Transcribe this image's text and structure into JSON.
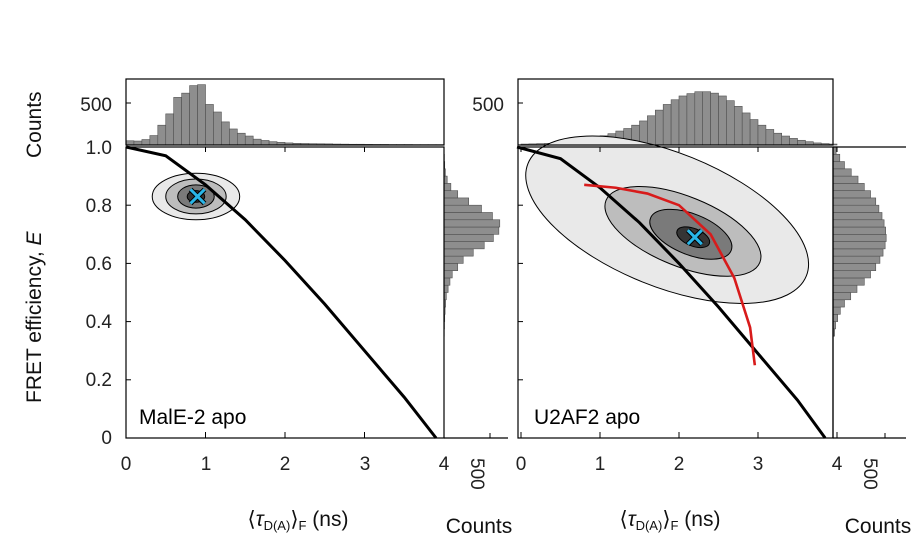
{
  "figure": {
    "y_axis_label": "FRET efficiency, E",
    "y_axis_label_prefix": "FRET efficiency, ",
    "y_axis_label_var": "E",
    "hist_y_label": "Counts",
    "x_axis_label": "⟨τD(A)⟩F (ns)",
    "x_axis_label_open": "⟨",
    "x_axis_label_tau": "τ",
    "x_axis_label_sub": "D(A)",
    "x_axis_label_close": "⟩",
    "x_axis_label_sub2": "F",
    "x_axis_label_units": " (ns)",
    "side_hist_label": "Counts",
    "hist_tick": "500",
    "side_hist_tick": "500"
  },
  "chart_data": [
    {
      "type": "heatmap",
      "panel": "MalE-2 apo",
      "title": "MalE-2 apo",
      "xlabel": "⟨τD(A)⟩F (ns)",
      "ylabel": "FRET efficiency, E",
      "xlim": [
        0,
        4
      ],
      "ylim": [
        0,
        1
      ],
      "x_ticks": [
        "0",
        "1",
        "2",
        "3",
        "4"
      ],
      "y_ticks": [
        "0",
        "0.2",
        "0.4",
        "0.6",
        "0.8",
        "1.0"
      ],
      "population_center": {
        "tau_ns": 0.9,
        "E": 0.83
      },
      "contour_levels": [
        {
          "cx": 0.88,
          "cy": 0.83,
          "rx": 0.55,
          "ry": 0.08
        },
        {
          "cx": 0.88,
          "cy": 0.83,
          "rx": 0.38,
          "ry": 0.06
        },
        {
          "cx": 0.88,
          "cy": 0.83,
          "rx": 0.23,
          "ry": 0.04
        },
        {
          "cx": 0.88,
          "cy": 0.83,
          "rx": 0.11,
          "ry": 0.02
        }
      ],
      "static_fret_line": [
        [
          0,
          1.0
        ],
        [
          0.5,
          0.97
        ],
        [
          1.0,
          0.87
        ],
        [
          1.5,
          0.75
        ],
        [
          2.0,
          0.61
        ],
        [
          2.5,
          0.46
        ],
        [
          3.0,
          0.3
        ],
        [
          3.5,
          0.14
        ],
        [
          3.9,
          0.0
        ]
      ],
      "tau_histogram": {
        "bin_start": 0,
        "bin_width": 0.1,
        "ylim": [
          0,
          700
        ],
        "counts": [
          45,
          42,
          58,
          100,
          210,
          330,
          505,
          550,
          630,
          640,
          430,
          350,
          245,
          170,
          125,
          95,
          62,
          48,
          35,
          28,
          22,
          18,
          16,
          14,
          13,
          12,
          10,
          9,
          8,
          8,
          7,
          6,
          6,
          5,
          5,
          5,
          4,
          4,
          4,
          4
        ]
      },
      "E_histogram": {
        "bin_start": 0.35,
        "bin_width": 0.025,
        "xlim": [
          0,
          700
        ],
        "counts": [
          3,
          5,
          8,
          12,
          18,
          25,
          45,
          65,
          90,
          150,
          210,
          320,
          440,
          540,
          600,
          610,
          530,
          410,
          270,
          150,
          75,
          35,
          15,
          8,
          4,
          2
        ]
      }
    },
    {
      "type": "heatmap",
      "panel": "U2AF2 apo",
      "title": "U2AF2 apo",
      "xlabel": "⟨τD(A)⟩F (ns)",
      "ylabel": "",
      "xlim": [
        0,
        4
      ],
      "ylim": [
        0,
        1
      ],
      "x_ticks": [
        "0",
        "1",
        "2",
        "3",
        "4"
      ],
      "y_ticks": [],
      "population_center": {
        "tau_ns": 2.2,
        "E": 0.69
      },
      "contour_levels": [
        {
          "cx": 1.85,
          "cy": 0.75,
          "rx": 1.9,
          "ry": 0.23,
          "rot": 22
        },
        {
          "cx": 2.05,
          "cy": 0.71,
          "rx": 1.05,
          "ry": 0.12,
          "rot": 22
        },
        {
          "cx": 2.15,
          "cy": 0.7,
          "rx": 0.55,
          "ry": 0.07,
          "rot": 22
        },
        {
          "cx": 2.18,
          "cy": 0.69,
          "rx": 0.22,
          "ry": 0.03,
          "rot": 22
        }
      ],
      "static_fret_line": [
        [
          -0.05,
          1.0
        ],
        [
          0.5,
          0.96
        ],
        [
          1.0,
          0.86
        ],
        [
          1.5,
          0.74
        ],
        [
          2.0,
          0.6
        ],
        [
          2.5,
          0.45
        ],
        [
          3.0,
          0.29
        ],
        [
          3.5,
          0.13
        ],
        [
          3.85,
          0.0
        ]
      ],
      "dynamic_fret_line": [
        [
          0.8,
          0.87
        ],
        [
          1.2,
          0.86
        ],
        [
          1.6,
          0.84
        ],
        [
          2.0,
          0.8
        ],
        [
          2.4,
          0.7
        ],
        [
          2.7,
          0.55
        ],
        [
          2.9,
          0.38
        ],
        [
          2.96,
          0.25
        ]
      ],
      "tau_histogram": {
        "bin_start": 0,
        "bin_width": 0.1,
        "ylim": [
          0,
          700
        ],
        "counts": [
          10,
          12,
          15,
          18,
          22,
          28,
          36,
          48,
          62,
          80,
          98,
          120,
          148,
          175,
          210,
          255,
          310,
          370,
          430,
          480,
          520,
          545,
          565,
          565,
          550,
          520,
          470,
          410,
          340,
          270,
          210,
          165,
          125,
          95,
          70,
          50,
          35,
          22,
          15,
          10
        ]
      },
      "E_histogram": {
        "bin_start": 0.35,
        "bin_width": 0.025,
        "xlim": [
          0,
          700
        ],
        "counts": [
          15,
          25,
          45,
          70,
          110,
          170,
          230,
          300,
          360,
          410,
          450,
          480,
          500,
          510,
          505,
          490,
          470,
          440,
          410,
          360,
          300,
          240,
          175,
          110,
          65,
          30
        ]
      }
    }
  ]
}
